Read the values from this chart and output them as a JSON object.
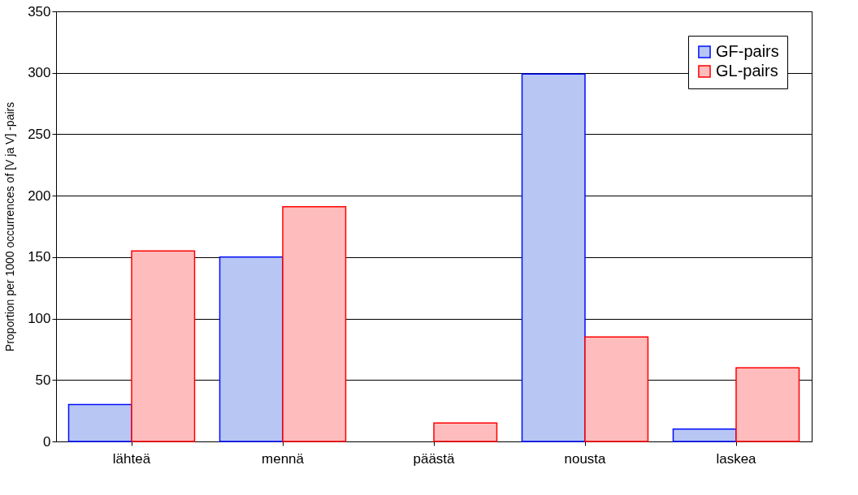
{
  "chart_data": {
    "type": "bar",
    "ylabel": "Proportion per 1000 occurrences of [V ja V] -pairs",
    "categories": [
      "lähteä",
      "mennä",
      "päästä",
      "nousta",
      "laskea"
    ],
    "series": [
      {
        "name": "GF-pairs",
        "color": "#b8c6f4",
        "values": [
          30,
          150,
          null,
          299,
          10
        ]
      },
      {
        "name": "GL-pairs",
        "color": "#ffbcbc",
        "values": [
          155,
          191,
          15,
          85,
          60
        ]
      }
    ],
    "ylim": [
      0,
      350
    ],
    "yticks": [
      0,
      50,
      100,
      150,
      200,
      250,
      300,
      350
    ],
    "grid": "y",
    "legend": "top right"
  }
}
